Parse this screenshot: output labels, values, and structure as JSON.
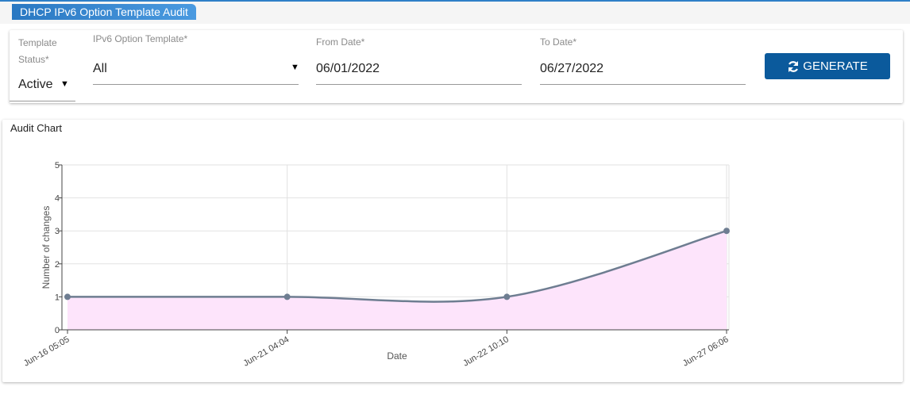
{
  "header": {
    "title": "DHCP IPv6 Option Template Audit"
  },
  "form": {
    "fields": [
      {
        "label": "Template Status*",
        "value": "Active"
      },
      {
        "label": "IPv6 Option Template*",
        "value": "All"
      },
      {
        "label": "From Date*",
        "value": "06/01/2022"
      },
      {
        "label": "To Date*",
        "value": "06/27/2022"
      }
    ],
    "button": "GENERATE"
  },
  "card_title": "Audit Chart",
  "chart_data": {
    "type": "area",
    "x_label": "Date",
    "y_label": "Number of changes",
    "categories": [
      "Jun-16 05:05",
      "Jun-21 04:04",
      "Jun-22 10:10",
      "Jun-27 06:06"
    ],
    "values": [
      1,
      1,
      1,
      3
    ],
    "color": "#6e7d91",
    "fill_color": "#fde4fb",
    "ylim": [
      0,
      5
    ],
    "yticks": [
      0,
      1,
      2,
      3,
      4,
      5
    ],
    "grid": true
  }
}
